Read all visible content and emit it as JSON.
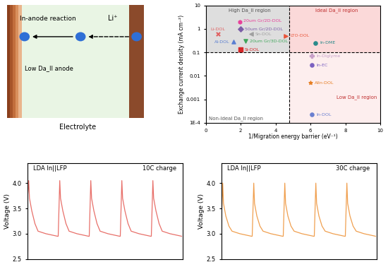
{
  "diagram": {
    "labels": {
      "reaction": "In-anode reaction",
      "ion": "Li⁺",
      "anode": "Low Da_II anode",
      "electrolyte": "Electrolyte"
    }
  },
  "chart_data": [
    {
      "type": "scatter",
      "x_label": "1/Migration energy barrier (eV⁻¹)",
      "y_label": "Exchange current density (mA cm⁻²)",
      "log": "y",
      "xlim": [
        0,
        10
      ],
      "ylim": [
        0.0001,
        10
      ],
      "xticks": [
        0,
        2,
        4,
        6,
        8,
        10
      ],
      "yticks": [
        {
          "value": 0.0001,
          "label": "1E-4"
        },
        0.001,
        0.01,
        0.1,
        1,
        10
      ],
      "thresholds": {
        "x": 4.8,
        "y": 0.1
      },
      "regions": [
        {
          "name": "High Da_II region",
          "color": "#dedede"
        },
        {
          "name": "Ideal Da_II region",
          "color": "#fbd9d9"
        },
        {
          "name": "Non-Ideal Da_II region",
          "color": "#ffffff"
        },
        {
          "name": "Low Da_II region",
          "color": "#fdeeee"
        }
      ],
      "series": [
        {
          "name": "Li-DOL",
          "x": [
            0.7
          ],
          "values": [
            0.6
          ],
          "color": "#e06060",
          "marker": "x"
        },
        {
          "name": "20um Gr/2D-DOL",
          "x": [
            1.95
          ],
          "values": [
            2.0
          ],
          "color": "#e8409a",
          "marker": "hexagon"
        },
        {
          "name": "50um Gr/2D-DOL",
          "x": [
            2.0
          ],
          "values": [
            1.0
          ],
          "color": "#7b5ea7",
          "marker": "diamond"
        },
        {
          "name": "Sn-DOL",
          "x": [
            2.6
          ],
          "values": [
            0.6
          ],
          "color": "#a0a0a0",
          "marker": "triangle_left"
        },
        {
          "name": "20um Gr/3D-DOL",
          "x": [
            2.3
          ],
          "values": [
            0.3
          ],
          "color": "#3fa65a",
          "marker": "triangle_down"
        },
        {
          "name": "Al-DOL",
          "x": [
            1.6
          ],
          "values": [
            0.28
          ],
          "color": "#5b7fd1",
          "marker": "triangle_up"
        },
        {
          "name": "Si-DOL",
          "x": [
            2.0
          ],
          "values": [
            0.13
          ],
          "color": "#d62728",
          "marker": "square"
        },
        {
          "name": "LTO-DOL",
          "x": [
            4.6
          ],
          "values": [
            0.5
          ],
          "color": "#e8553a",
          "marker": "triangle_right"
        },
        {
          "name": "In-DME",
          "x": [
            6.3
          ],
          "values": [
            0.25
          ],
          "color": "#2a8a8a",
          "marker": "circle"
        },
        {
          "name": "In-Diglyme",
          "x": [
            6.1
          ],
          "values": [
            0.07
          ],
          "color": "#c8a0c8",
          "marker": "plus"
        },
        {
          "name": "In-EC",
          "x": [
            6.1
          ],
          "values": [
            0.028
          ],
          "color": "#7a60c0",
          "marker": "circle"
        },
        {
          "name": "AlIn-DOL",
          "x": [
            6.0
          ],
          "values": [
            0.005
          ],
          "color": "#e67e22",
          "marker": "star"
        },
        {
          "name": "In-DOL",
          "x": [
            6.1
          ],
          "values": [
            0.00022
          ],
          "color": "#6a7fd0",
          "marker": "circle"
        }
      ]
    },
    {
      "type": "line",
      "y_label": "Voltage (V)",
      "annotations": [
        "LDA In||LFP",
        "10C charge"
      ],
      "tick_labels": "y",
      "xlim": [
        0,
        10
      ],
      "ylim": [
        2.5,
        4.4
      ],
      "yticks": [
        2.5,
        3.0,
        3.5,
        4.0
      ],
      "color": "#e8706a",
      "x": [
        0,
        0.1,
        0.15,
        0.3,
        0.5,
        0.7,
        1.2,
        1.95,
        2,
        2.1,
        2.15,
        2.3,
        2.5,
        2.7,
        3.2,
        3.95,
        4,
        4.1,
        4.15,
        4.3,
        4.5,
        4.7,
        5.2,
        5.95,
        6,
        6.1,
        6.15,
        6.3,
        6.5,
        6.7,
        7.2,
        7.95,
        8,
        8.1,
        8.15,
        8.3,
        8.5,
        8.7,
        9.2,
        9.95
      ],
      "values": [
        3.6,
        4.05,
        3.7,
        3.45,
        3.2,
        3.05,
        3.0,
        2.95,
        2.95,
        4.05,
        3.7,
        3.45,
        3.2,
        3.05,
        3.0,
        2.95,
        2.95,
        4.05,
        3.7,
        3.45,
        3.2,
        3.05,
        3.0,
        2.95,
        2.95,
        4.05,
        3.7,
        3.45,
        3.2,
        3.05,
        3.0,
        2.95,
        2.95,
        4.05,
        3.7,
        3.45,
        3.2,
        3.05,
        3.0,
        2.95
      ]
    },
    {
      "type": "line",
      "y_label": "Voltage (V)",
      "annotations": [
        "LDA In||LFP",
        "30C charge"
      ],
      "tick_labels": "y",
      "xlim": [
        0,
        10
      ],
      "ylim": [
        2.5,
        4.4
      ],
      "yticks": [
        2.5,
        3.0,
        3.5,
        4.0
      ],
      "color": "#f0a050",
      "x": [
        0,
        0.1,
        0.15,
        0.3,
        0.5,
        0.7,
        1.2,
        1.95,
        2,
        2.1,
        2.15,
        2.3,
        2.5,
        2.7,
        3.2,
        3.95,
        4,
        4.1,
        4.15,
        4.3,
        4.5,
        4.7,
        5.2,
        5.95,
        6,
        6.1,
        6.15,
        6.3,
        6.5,
        6.7,
        7.2,
        7.95,
        8,
        8.1,
        8.15,
        8.3,
        8.5,
        8.7,
        9.2,
        9.95
      ],
      "values": [
        3.1,
        4.0,
        3.6,
        3.35,
        3.15,
        3.05,
        3.0,
        2.95,
        2.95,
        4.0,
        3.6,
        3.35,
        3.15,
        3.05,
        3.0,
        2.95,
        2.95,
        4.0,
        3.6,
        3.35,
        3.15,
        3.05,
        3.0,
        2.95,
        2.95,
        4.0,
        3.6,
        3.35,
        3.15,
        3.05,
        3.0,
        2.95,
        2.95,
        4.0,
        3.6,
        3.35,
        3.15,
        3.05,
        3.0,
        2.95
      ]
    }
  ]
}
